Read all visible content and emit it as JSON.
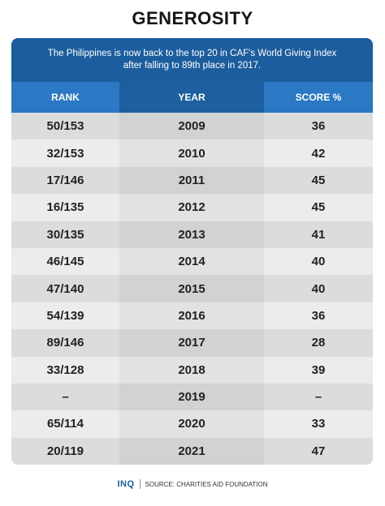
{
  "title": "GENEROSITY",
  "banner": {
    "line1": "The Philippines is now back to the top 20 in CAF's World Giving Index",
    "line2": "after falling to 89th place in 2017."
  },
  "colors": {
    "banner": "#1c5d9d",
    "header_side": "#2b78c4",
    "header_mid": "#1d5f9f"
  },
  "footer": {
    "logo": "INQ",
    "source": "SOURCE: CHARITIES AID FOUNDATION"
  },
  "chart_data": {
    "type": "table",
    "columns": [
      "RANK",
      "YEAR",
      "SCORE %"
    ],
    "rows": [
      {
        "rank": "50/153",
        "year": "2009",
        "score": "36"
      },
      {
        "rank": "32/153",
        "year": "2010",
        "score": "42"
      },
      {
        "rank": "17/146",
        "year": "2011",
        "score": "45"
      },
      {
        "rank": "16/135",
        "year": "2012",
        "score": "45"
      },
      {
        "rank": "30/135",
        "year": "2013",
        "score": "41"
      },
      {
        "rank": "46/145",
        "year": "2014",
        "score": "40"
      },
      {
        "rank": "47/140",
        "year": "2015",
        "score": "40"
      },
      {
        "rank": "54/139",
        "year": "2016",
        "score": "36"
      },
      {
        "rank": "89/146",
        "year": "2017",
        "score": "28"
      },
      {
        "rank": "33/128",
        "year": "2018",
        "score": "39"
      },
      {
        "rank": "–",
        "year": "2019",
        "score": "–"
      },
      {
        "rank": "65/114",
        "year": "2020",
        "score": "33"
      },
      {
        "rank": "20/119",
        "year": "2021",
        "score": "47"
      }
    ]
  }
}
